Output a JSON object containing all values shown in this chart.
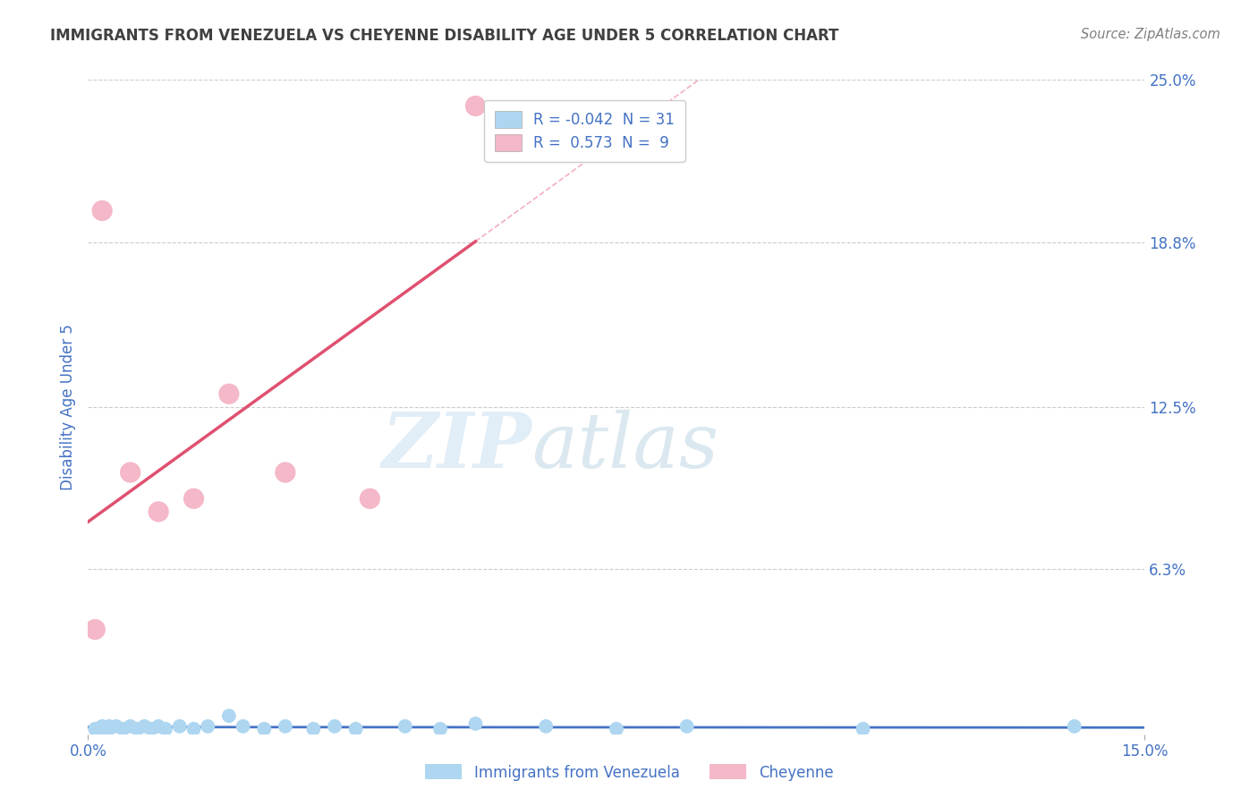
{
  "title": "IMMIGRANTS FROM VENEZUELA VS CHEYENNE DISABILITY AGE UNDER 5 CORRELATION CHART",
  "source": "Source: ZipAtlas.com",
  "ylabel": "Disability Age Under 5",
  "xlim": [
    0.0,
    0.15
  ],
  "ylim": [
    0.0,
    0.25
  ],
  "ytick_labels_right": [
    "25.0%",
    "18.8%",
    "12.5%",
    "6.3%"
  ],
  "ytick_vals": [
    0.25,
    0.188,
    0.125,
    0.063
  ],
  "blue_R": -0.042,
  "blue_N": 31,
  "pink_R": 0.573,
  "pink_N": 9,
  "blue_scatter_x": [
    0.001,
    0.002,
    0.002,
    0.003,
    0.003,
    0.004,
    0.005,
    0.006,
    0.007,
    0.008,
    0.009,
    0.01,
    0.011,
    0.013,
    0.015,
    0.017,
    0.02,
    0.022,
    0.025,
    0.028,
    0.032,
    0.035,
    0.038,
    0.045,
    0.05,
    0.055,
    0.065,
    0.075,
    0.085,
    0.11,
    0.14
  ],
  "blue_scatter_y": [
    0.002,
    0.003,
    0.001,
    0.003,
    0.002,
    0.003,
    0.002,
    0.003,
    0.002,
    0.003,
    0.002,
    0.003,
    0.002,
    0.003,
    0.002,
    0.003,
    0.007,
    0.003,
    0.002,
    0.003,
    0.002,
    0.003,
    0.002,
    0.003,
    0.002,
    0.004,
    0.003,
    0.002,
    0.003,
    0.002,
    0.003
  ],
  "pink_scatter_x": [
    0.001,
    0.002,
    0.006,
    0.01,
    0.015,
    0.02,
    0.028,
    0.04,
    0.055
  ],
  "pink_scatter_y": [
    0.04,
    0.2,
    0.1,
    0.085,
    0.09,
    0.13,
    0.1,
    0.09,
    0.24
  ],
  "blue_line_color": "#4472c4",
  "pink_line_color": "#e05070",
  "blue_scatter_color": "#aed6f1",
  "pink_scatter_color": "#f4b8c8",
  "watermark_zip": "ZIP",
  "watermark_atlas": "atlas",
  "background_color": "#ffffff",
  "grid_color": "#cccccc",
  "title_color": "#404040",
  "axis_label_color": "#4472c4",
  "source_color": "#808080",
  "legend_label_blue": "R = -0.042  N = 31",
  "legend_label_pink": "R =  0.573  N =  9",
  "bottom_legend_blue": "Immigrants from Venezuela",
  "bottom_legend_pink": "Cheyenne"
}
